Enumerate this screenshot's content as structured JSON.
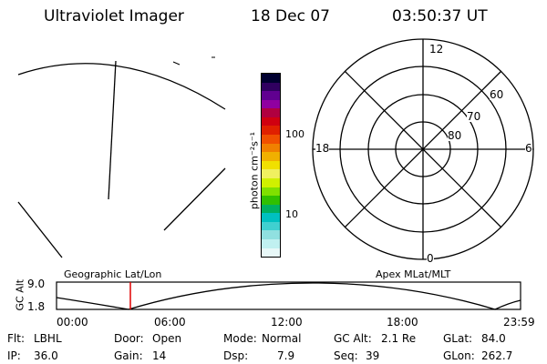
{
  "header": {
    "instrument": "Ultraviolet Imager",
    "date": "18 Dec 07",
    "time": "03:50:37 UT"
  },
  "colorbar": {
    "unit_label": "photon cm⁻²s⁻¹",
    "ticks": [
      "100",
      "10"
    ],
    "colors": [
      "#000030",
      "#300060",
      "#600090",
      "#9000a0",
      "#b00040",
      "#d00010",
      "#e02000",
      "#f05000",
      "#f08000",
      "#f0b000",
      "#f0e000",
      "#f0f060",
      "#d0f000",
      "#80e000",
      "#30c000",
      "#00b060",
      "#00c0c0",
      "#40d0d0",
      "#90e0e0",
      "#c0f0f0",
      "#e8f8f8"
    ]
  },
  "polar_plot": {
    "clock_labels": {
      "top": "12",
      "right": "6",
      "bottom": "0",
      "left": "18"
    },
    "latitude_labels": [
      "60",
      "70",
      "80"
    ]
  },
  "timeline": {
    "left_label": "Geographic Lat/Lon",
    "right_label": "Apex MLat/MLT",
    "y_axis_title": "GC Alt",
    "y_ticks": [
      "9.0",
      "1.8"
    ],
    "x_ticks": [
      "00:00",
      "06:00",
      "12:00",
      "18:00",
      "23:59"
    ],
    "marker_color": "#e00000"
  },
  "status": {
    "flt_label": "Flt:",
    "flt_value": "LBHL",
    "door_label": "Door:",
    "door_value": "Open",
    "mode_label": "Mode:",
    "mode_value": "Normal",
    "gcalt_label": "GC Alt:",
    "gcalt_value": "2.1 Re",
    "glat_label": "GLat:",
    "glat_value": "84.0",
    "ip_label": "IP:",
    "ip_value": "36.0",
    "gain_label": "Gain:",
    "gain_value": "14",
    "dsp_label": "Dsp:",
    "dsp_value": "7.9",
    "seq_label": "Seq:",
    "seq_value": "39",
    "glon_label": "GLon:",
    "glon_value": "262.7"
  }
}
